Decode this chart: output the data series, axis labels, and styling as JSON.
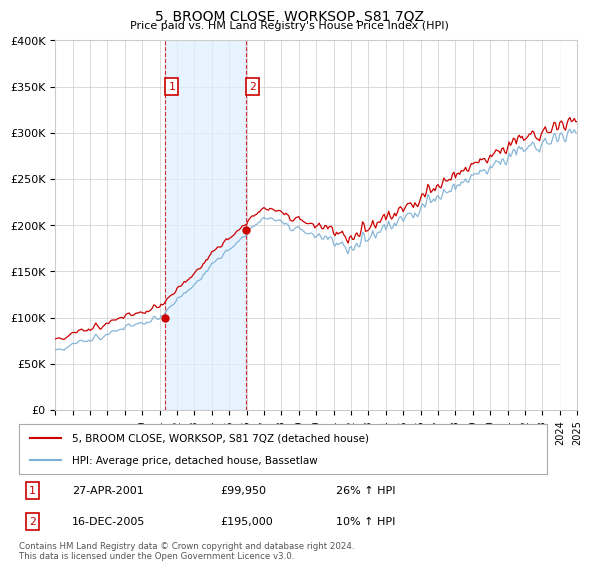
{
  "title": "5, BROOM CLOSE, WORKSOP, S81 7QZ",
  "subtitle": "Price paid vs. HM Land Registry's House Price Index (HPI)",
  "ylim": [
    0,
    400000
  ],
  "yticks": [
    0,
    50000,
    100000,
    150000,
    200000,
    250000,
    300000,
    350000,
    400000
  ],
  "ytick_labels": [
    "£0",
    "£50K",
    "£100K",
    "£150K",
    "£200K",
    "£250K",
    "£300K",
    "£350K",
    "£400K"
  ],
  "x_start_year": 1995,
  "x_end_year": 2025,
  "sale1_date": "27-APR-2001",
  "sale1_price": 99950,
  "sale1_price_str": "£99,950",
  "sale1_hpi": "26% ↑ HPI",
  "sale1_label": "1",
  "sale1_x": 2001.3,
  "sale2_date": "16-DEC-2005",
  "sale2_price": 195000,
  "sale2_price_str": "£195,000",
  "sale2_hpi": "10% ↑ HPI",
  "sale2_label": "2",
  "sale2_x": 2005.96,
  "legend_line1": "5, BROOM CLOSE, WORKSOP, S81 7QZ (detached house)",
  "legend_line2": "HPI: Average price, detached house, Bassetlaw",
  "footer": "Contains HM Land Registry data © Crown copyright and database right 2024.\nThis data is licensed under the Open Government Licence v3.0.",
  "hpi_color": "#7bafd4",
  "price_color": "#cc0000",
  "shade_color": "#ddeeff",
  "vline_color": "#cc0000",
  "background_color": "#ffffff",
  "grid_color": "#cccccc",
  "title_fontsize": 10,
  "subtitle_fontsize": 8
}
